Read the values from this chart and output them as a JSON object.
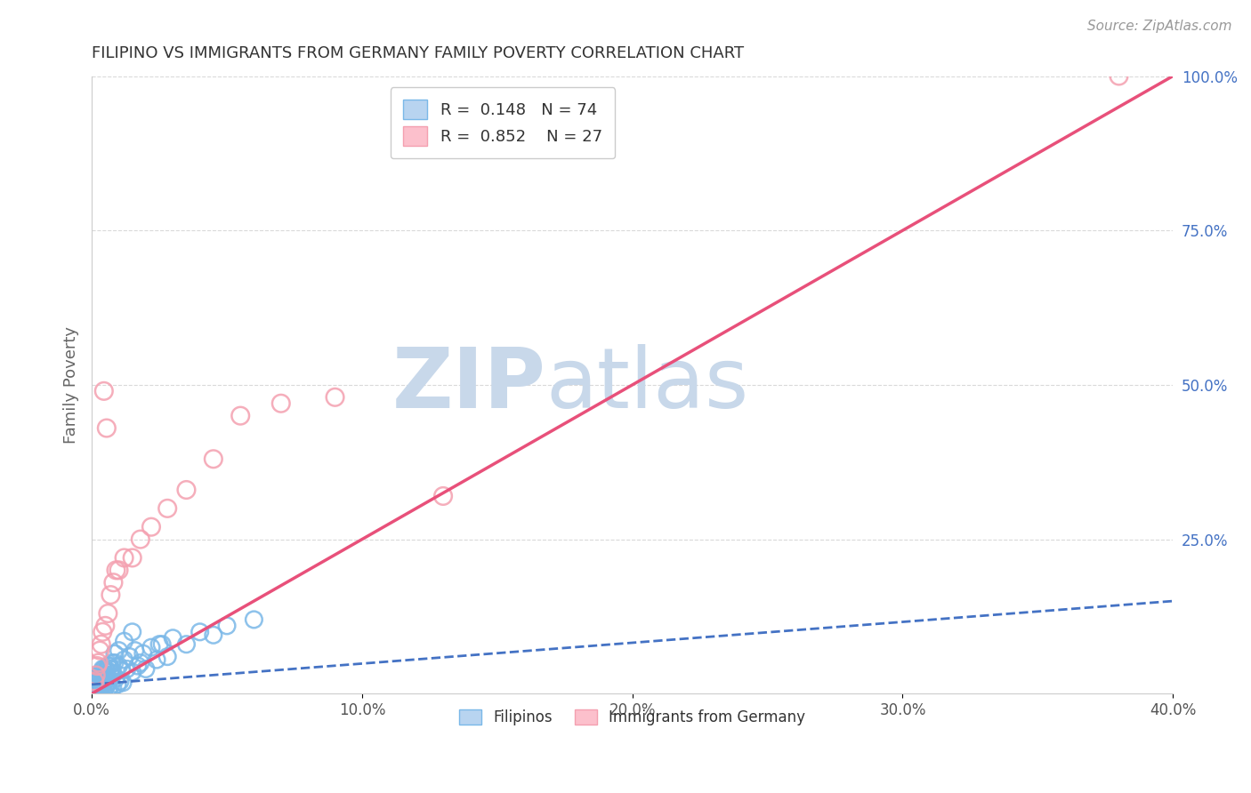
{
  "title": "FILIPINO VS IMMIGRANTS FROM GERMANY FAMILY POVERTY CORRELATION CHART",
  "source": "Source: ZipAtlas.com",
  "ylabel": "Family Poverty",
  "xlabel_ticks": [
    "0.0%",
    "10.0%",
    "20.0%",
    "30.0%",
    "40.0%"
  ],
  "xlabel_vals": [
    0.0,
    10.0,
    20.0,
    30.0,
    40.0
  ],
  "ylabel_ticks_right": [
    "100.0%",
    "75.0%",
    "50.0%",
    "25.0%"
  ],
  "ylabel_vals_right": [
    100.0,
    75.0,
    50.0,
    25.0
  ],
  "xlim": [
    0.0,
    40.0
  ],
  "ylim": [
    0.0,
    100.0
  ],
  "r_filipino": 0.148,
  "n_filipino": 74,
  "r_germany": 0.852,
  "n_germany": 27,
  "filipino_color": "#7ab8e8",
  "germany_color": "#f4a0b0",
  "filipino_line_color": "#4472c4",
  "germany_line_color": "#e8507a",
  "filipino_scatter_x": [
    0.05,
    0.08,
    0.1,
    0.12,
    0.15,
    0.15,
    0.18,
    0.2,
    0.2,
    0.22,
    0.25,
    0.25,
    0.28,
    0.3,
    0.3,
    0.32,
    0.35,
    0.35,
    0.38,
    0.4,
    0.4,
    0.42,
    0.45,
    0.45,
    0.48,
    0.5,
    0.52,
    0.55,
    0.58,
    0.6,
    0.62,
    0.65,
    0.68,
    0.7,
    0.72,
    0.75,
    0.78,
    0.8,
    0.85,
    0.9,
    0.95,
    1.0,
    1.05,
    1.1,
    1.15,
    1.2,
    1.3,
    1.4,
    1.5,
    1.6,
    1.7,
    1.8,
    1.9,
    2.0,
    2.2,
    2.4,
    2.6,
    2.8,
    3.0,
    3.5,
    4.0,
    4.5,
    5.0,
    6.0,
    0.55,
    0.65,
    0.75,
    0.85,
    1.0,
    1.2,
    1.5,
    0.45,
    0.35,
    2.5
  ],
  "filipino_scatter_y": [
    0.5,
    1.0,
    0.3,
    1.5,
    0.8,
    2.0,
    1.2,
    0.5,
    1.8,
    2.5,
    1.0,
    3.0,
    0.7,
    1.5,
    2.8,
    0.3,
    1.2,
    3.5,
    0.8,
    2.0,
    4.0,
    1.5,
    2.5,
    0.5,
    3.0,
    1.0,
    2.2,
    3.8,
    1.5,
    4.5,
    0.8,
    2.0,
    3.5,
    1.2,
    4.0,
    2.8,
    1.0,
    3.2,
    5.0,
    2.5,
    1.5,
    4.5,
    2.0,
    3.8,
    1.8,
    5.5,
    4.0,
    6.0,
    3.5,
    7.0,
    4.5,
    5.0,
    6.5,
    4.0,
    7.5,
    5.5,
    8.0,
    6.0,
    9.0,
    8.0,
    10.0,
    9.5,
    11.0,
    12.0,
    3.0,
    4.5,
    5.0,
    6.5,
    7.0,
    8.5,
    10.0,
    4.0,
    3.2,
    8.0
  ],
  "germany_scatter_x": [
    0.1,
    0.15,
    0.2,
    0.25,
    0.3,
    0.35,
    0.4,
    0.5,
    0.6,
    0.7,
    0.8,
    0.9,
    1.0,
    1.2,
    1.5,
    1.8,
    2.2,
    2.8,
    3.5,
    4.5,
    0.45,
    0.55,
    5.5,
    7.0,
    9.0,
    38.0,
    13.0
  ],
  "germany_scatter_y": [
    2.0,
    3.0,
    4.5,
    5.0,
    7.0,
    8.0,
    10.0,
    11.0,
    13.0,
    16.0,
    18.0,
    20.0,
    20.0,
    22.0,
    22.0,
    25.0,
    27.0,
    30.0,
    33.0,
    38.0,
    49.0,
    43.0,
    45.0,
    47.0,
    48.0,
    100.0,
    32.0
  ],
  "fil_trend_x0": 0.0,
  "fil_trend_y0": 1.5,
  "fil_trend_x1": 40.0,
  "fil_trend_y1": 15.0,
  "ger_trend_x0": 0.0,
  "ger_trend_y0": 0.0,
  "ger_trend_x1": 40.0,
  "ger_trend_y1": 100.0,
  "watermark_zip": "ZIP",
  "watermark_atlas": "atlas",
  "watermark_color": "#c8d8ea",
  "background_color": "#ffffff",
  "grid_color": "#d0d0d0",
  "title_color": "#333333",
  "source_color": "#999999",
  "axis_label_color": "#666666",
  "right_tick_color": "#4472c4",
  "legend_border_color": "#cccccc"
}
